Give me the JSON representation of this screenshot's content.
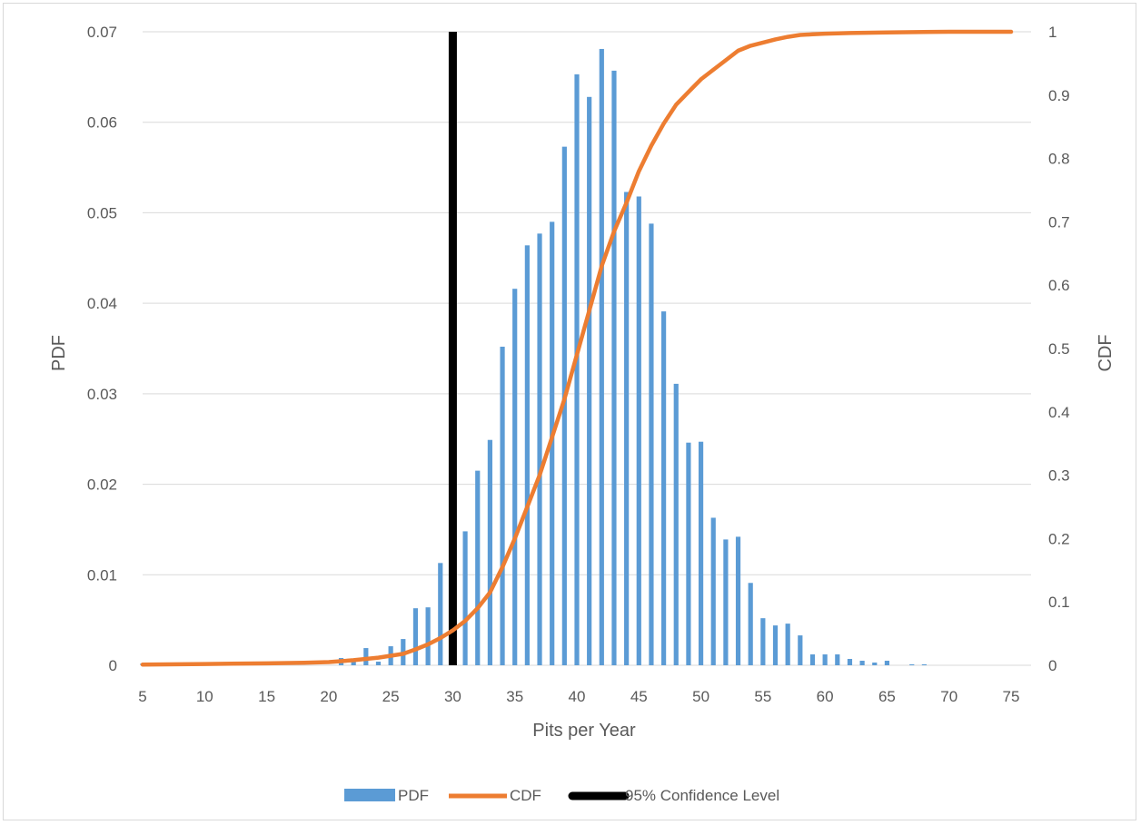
{
  "chart_data": {
    "type": "bar",
    "title": "",
    "xlabel": "Pits per Year",
    "ylabel_left": "PDF",
    "ylabel_right": "CDF",
    "xlim": [
      5,
      75
    ],
    "ylim_left": [
      0,
      0.07
    ],
    "ylim_right": [
      0,
      1
    ],
    "x_ticks": [
      "5",
      "10",
      "15",
      "20",
      "25",
      "30",
      "35",
      "40",
      "45",
      "50",
      "55",
      "60",
      "65",
      "70",
      "75"
    ],
    "y_left_ticks": [
      "0",
      "0.01",
      "0.02",
      "0.03",
      "0.04",
      "0.05",
      "0.06",
      "0.07"
    ],
    "y_right_ticks": [
      "0",
      "0.1",
      "0.2",
      "0.3",
      "0.4",
      "0.5",
      "0.6",
      "0.7",
      "0.8",
      "0.9",
      "1"
    ],
    "grid": "horizontal",
    "legend_position": "bottom",
    "colors": {
      "pdf": "#5b9bd5",
      "cdf": "#ed7d31",
      "confidence": "#000000",
      "grid": "#d9d9d9",
      "text": "#595959"
    },
    "series": [
      {
        "name": "PDF",
        "kind": "bar",
        "axis": "left",
        "x": [
          5,
          6,
          7,
          8,
          9,
          10,
          11,
          12,
          13,
          14,
          15,
          16,
          17,
          18,
          19,
          20,
          21,
          22,
          23,
          24,
          25,
          26,
          27,
          28,
          29,
          30,
          31,
          32,
          33,
          34,
          35,
          36,
          37,
          38,
          39,
          40,
          41,
          42,
          43,
          44,
          45,
          46,
          47,
          48,
          49,
          50,
          51,
          52,
          53,
          54,
          55,
          56,
          57,
          58,
          59,
          60,
          61,
          62,
          63,
          64,
          65,
          66,
          67,
          68,
          69,
          70,
          71,
          72,
          73,
          74,
          75
        ],
        "values": [
          0.0002,
          0,
          0,
          0,
          0,
          0,
          0,
          0,
          0,
          0,
          0,
          0,
          0,
          0,
          0,
          0,
          0.0008,
          0.0007,
          0.0019,
          0.0004,
          0.0021,
          0.0029,
          0.0063,
          0.0064,
          0.0113,
          0.0116,
          0.0148,
          0.0215,
          0.0249,
          0.0352,
          0.0416,
          0.0464,
          0.0477,
          0.049,
          0.0573,
          0.0653,
          0.0628,
          0.0681,
          0.0657,
          0.0523,
          0.0518,
          0.0488,
          0.0391,
          0.0311,
          0.0246,
          0.0247,
          0.0163,
          0.0139,
          0.0142,
          0.0091,
          0.0052,
          0.0044,
          0.0046,
          0.0033,
          0.0012,
          0.0012,
          0.0012,
          0.0007,
          0.0005,
          0.0003,
          0.0005,
          0,
          0.0001,
          0.0001,
          0,
          0,
          0,
          0,
          0,
          0,
          0
        ]
      },
      {
        "name": "CDF",
        "kind": "line",
        "axis": "right",
        "x": [
          5,
          10,
          15,
          18,
          20,
          22,
          24,
          26,
          27,
          28,
          29,
          30,
          31,
          32,
          33,
          34,
          35,
          36,
          37,
          38,
          39,
          40,
          41,
          42,
          43,
          44,
          45,
          46,
          47,
          48,
          49,
          50,
          51,
          52,
          53,
          54,
          55,
          56,
          57,
          58,
          59,
          60,
          62,
          65,
          70,
          75
        ],
        "values": [
          0.001,
          0.002,
          0.003,
          0.004,
          0.005,
          0.008,
          0.012,
          0.018,
          0.025,
          0.033,
          0.043,
          0.055,
          0.07,
          0.09,
          0.115,
          0.155,
          0.2,
          0.25,
          0.3,
          0.36,
          0.42,
          0.49,
          0.56,
          0.63,
          0.685,
          0.73,
          0.78,
          0.82,
          0.855,
          0.885,
          0.905,
          0.925,
          0.94,
          0.955,
          0.97,
          0.978,
          0.983,
          0.988,
          0.992,
          0.995,
          0.996,
          0.997,
          0.998,
          0.999,
          1.0,
          1.0
        ]
      },
      {
        "name": "95% Confidence Level",
        "kind": "vline",
        "axis": "left",
        "x": 30
      }
    ]
  }
}
